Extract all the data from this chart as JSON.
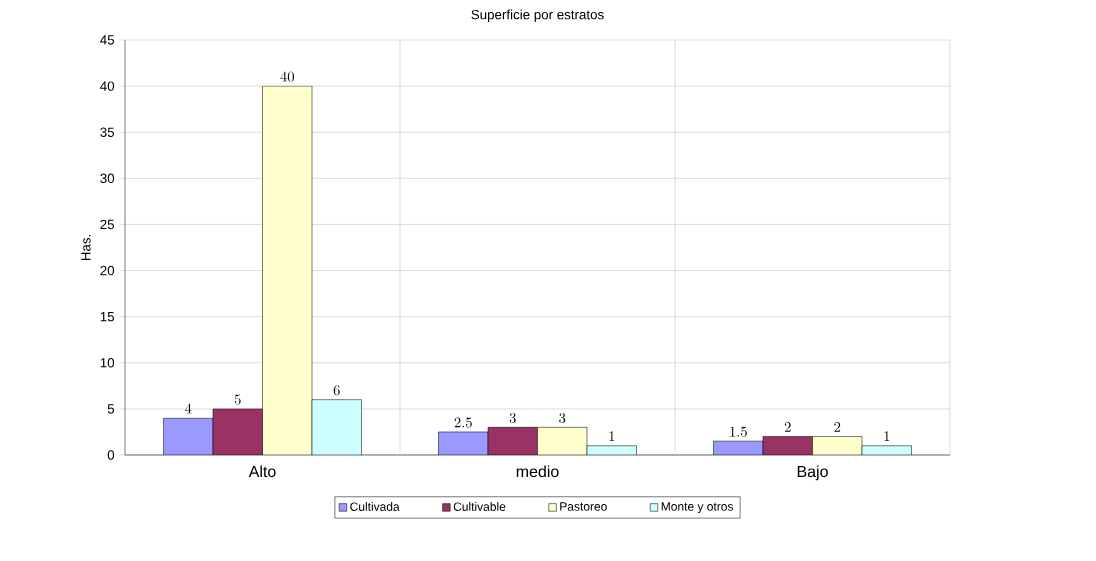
{
  "chart_data": {
    "type": "bar",
    "title": "Superficie por estratos",
    "ylabel": "Has.",
    "categories": [
      "Alto",
      "medio",
      "Bajo"
    ],
    "series": [
      {
        "name": "Cultivada",
        "color": "#9999ff",
        "values": [
          4,
          2.5,
          1.5
        ]
      },
      {
        "name": "Cultivable",
        "color": "#993366",
        "values": [
          5,
          3,
          2
        ]
      },
      {
        "name": "Pastoreo",
        "color": "#ffffcc",
        "values": [
          40,
          3,
          2
        ]
      },
      {
        "name": "Monte y otros",
        "color": "#ccffff",
        "values": [
          6,
          1,
          1
        ]
      }
    ],
    "ylim": [
      0,
      45
    ],
    "yticks": [
      0,
      5,
      10,
      15,
      20,
      25,
      30,
      35,
      40,
      45
    ],
    "grid": true,
    "legend": "bottom",
    "data_labels": true
  }
}
